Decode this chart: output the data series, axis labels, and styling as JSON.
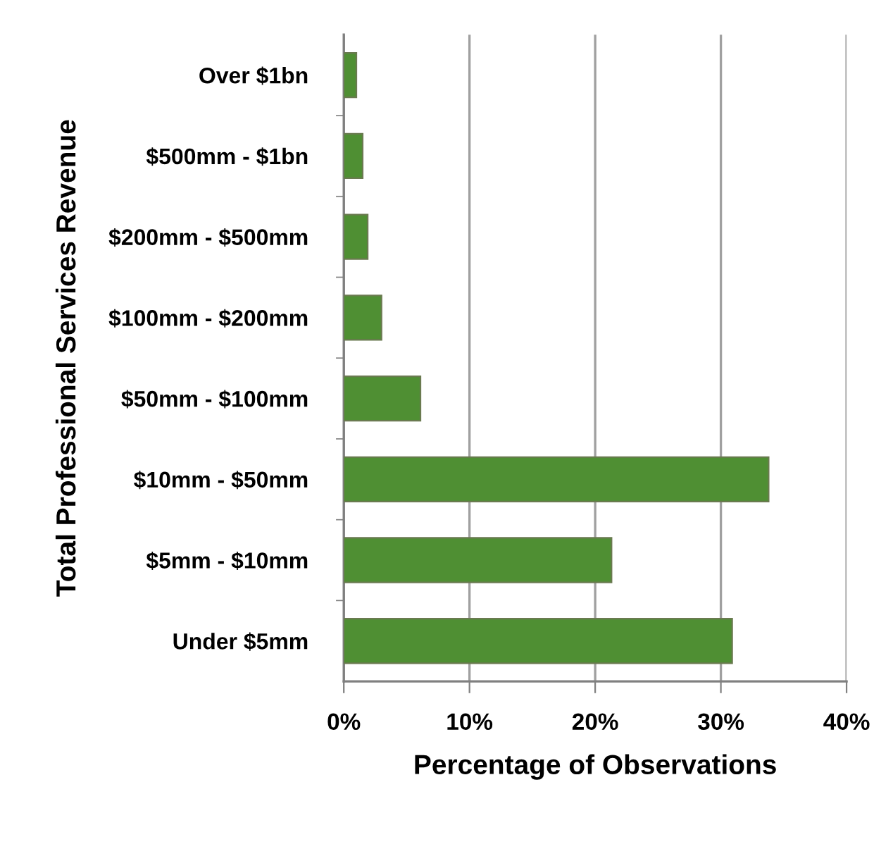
{
  "chart_data": {
    "type": "bar",
    "orientation": "horizontal",
    "xlabel": "Percentage of Observations",
    "ylabel": "Total Professional Services Revenue",
    "categories": [
      "Over $1bn",
      "$500mm - $1bn",
      "$200mm - $500mm",
      "$100mm - $200mm",
      "$50mm - $100mm",
      "$10mm - $50mm",
      "$5mm - $10mm",
      "Under $5mm"
    ],
    "values": [
      1.0,
      1.5,
      1.9,
      3.0,
      6.1,
      33.8,
      21.3,
      30.9
    ],
    "color": "#4f8f33",
    "xlim": [
      0,
      40
    ],
    "xticks": [
      {
        "value": 0,
        "label": "0%"
      },
      {
        "value": 10,
        "label": "10%"
      },
      {
        "value": 20,
        "label": "20%"
      },
      {
        "value": 30,
        "label": "30%"
      },
      {
        "value": 40,
        "label": "40%"
      }
    ],
    "grid": "x"
  }
}
